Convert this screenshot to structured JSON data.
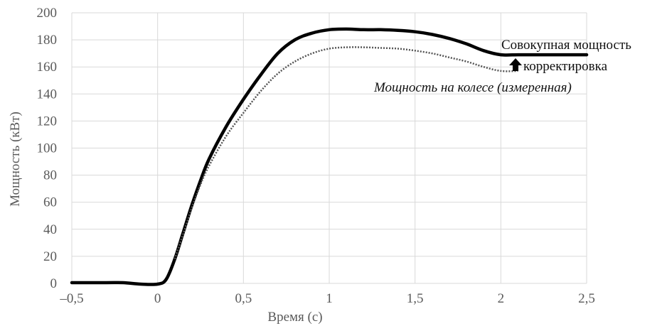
{
  "chart_data": {
    "type": "line",
    "title": "",
    "xlabel": "Время (с)",
    "ylabel": "Мощность (кВт)",
    "xlim": [
      -0.5,
      2.5
    ],
    "ylim": [
      0,
      200
    ],
    "x_ticks": [
      -0.5,
      0,
      0.5,
      1,
      1.5,
      2,
      2.5
    ],
    "x_tick_labels": [
      "–0,5",
      "0",
      "0,5",
      "1",
      "1,5",
      "2",
      "2,5"
    ],
    "y_ticks": [
      0,
      20,
      40,
      60,
      80,
      100,
      120,
      140,
      160,
      180,
      200
    ],
    "y_tick_labels": [
      "0",
      "20",
      "40",
      "60",
      "80",
      "100",
      "120",
      "140",
      "160",
      "180",
      "200"
    ],
    "grid": true,
    "series": [
      {
        "name": "Совокупная мощность",
        "style": "solid",
        "color": "#000000",
        "x": [
          -0.5,
          -0.3,
          -0.2,
          -0.1,
          0.0,
          0.05,
          0.1,
          0.15,
          0.2,
          0.25,
          0.3,
          0.4,
          0.5,
          0.6,
          0.7,
          0.8,
          0.9,
          1.0,
          1.1,
          1.2,
          1.3,
          1.4,
          1.5,
          1.6,
          1.7,
          1.8,
          1.9,
          2.0,
          2.1,
          2.2,
          2.3,
          2.4,
          2.5
        ],
        "y": [
          0.5,
          0.5,
          0.5,
          -0.5,
          -0.5,
          3,
          18,
          38,
          58,
          76,
          92,
          116,
          136,
          154,
          170,
          180,
          185,
          187.5,
          188,
          187.5,
          187.5,
          187,
          186,
          184,
          181,
          177,
          172,
          169,
          169,
          169,
          169,
          169,
          169
        ]
      },
      {
        "name": "Мощность на колесе (измеренная)",
        "style": "dotted",
        "color": "#555555",
        "x": [
          0.1,
          0.15,
          0.2,
          0.25,
          0.3,
          0.4,
          0.5,
          0.6,
          0.7,
          0.8,
          0.9,
          1.0,
          1.1,
          1.2,
          1.3,
          1.4,
          1.5,
          1.6,
          1.7,
          1.8,
          1.9,
          2.0,
          2.1
        ],
        "y": [
          18,
          37,
          56,
          73,
          87,
          109,
          126,
          142,
          155,
          164,
          170,
          173.5,
          174.5,
          174.5,
          174,
          173.5,
          172,
          170,
          167,
          164,
          160,
          157,
          157
        ]
      }
    ],
    "annotations": [
      {
        "text": "Совокупная мощность",
        "italic": false
      },
      {
        "text": "корректировка",
        "italic": false
      },
      {
        "text": "Мощность на колесе (измеренная)",
        "italic": true
      }
    ]
  },
  "colors": {
    "grid": "#d9d9d9",
    "tick_text": "#5a5a5a",
    "series_total": "#000000",
    "series_wheel": "#555555",
    "arrow": "#000000"
  }
}
